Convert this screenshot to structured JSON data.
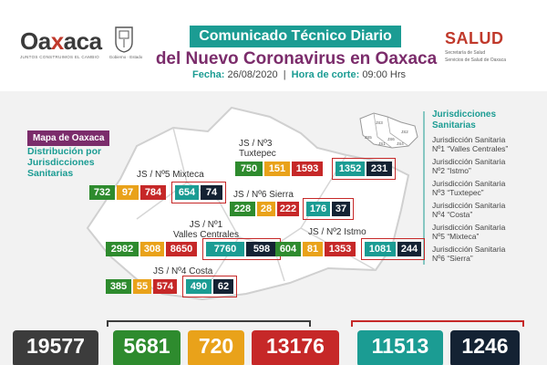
{
  "header": {
    "logo_text_a": "Oa",
    "logo_text_x": "x",
    "logo_text_b": "aca",
    "logo_tagline": "JUNTOS CONSTRUIMOS EL CAMBIO",
    "crest_label": "Gobierno · Estado",
    "title_line1": "Comunicado Técnico Diario",
    "title_line2": "del Nuevo Coronavirus en Oaxaca",
    "fecha_label": "Fecha:",
    "fecha_value": "26/08/2020",
    "hora_label": "Hora de corte:",
    "hora_value": "09:00 Hrs",
    "salud_word": "SALUD",
    "salud_sub1": "Secretaría de Salud",
    "salud_sub2": "Servicios de Salud de Oaxaca"
  },
  "map": {
    "tag": "Mapa de Oaxaca",
    "subtitle": "Distribución por Jurisdicciones Sanitarias",
    "mini_labels": [
      "JS1",
      "JS2",
      "JS3",
      "JS4",
      "JS5",
      "JS6"
    ],
    "jurisdictions": [
      {
        "label1": "JS / Nº3",
        "label2": "Tuxtepec",
        "values": [
          "750",
          "151",
          "1593",
          "1352",
          "231"
        ]
      },
      {
        "label1": "JS / Nº5 Mixteca",
        "label2": "",
        "values": [
          "732",
          "97",
          "784",
          "654",
          "74"
        ]
      },
      {
        "label1": "JS / Nº6 Sierra",
        "label2": "",
        "values": [
          "228",
          "28",
          "222",
          "176",
          "37"
        ]
      },
      {
        "label1": "JS / Nº1",
        "label2": "Valles Centrales",
        "values": [
          "2982",
          "308",
          "8650",
          "7760",
          "598"
        ]
      },
      {
        "label1": "JS / Nº2 Istmo",
        "label2": "",
        "values": [
          "604",
          "81",
          "1353",
          "1081",
          "244"
        ]
      },
      {
        "label1": "JS / Nº4 Costa",
        "label2": "",
        "values": [
          "385",
          "55",
          "574",
          "490",
          "62"
        ]
      }
    ]
  },
  "legend": {
    "title1": "Jurisdicciones",
    "title2": "Sanitarias",
    "items": [
      {
        "line1": "Jurisdicción Sanitaria",
        "line2": "Nº1 “Valles Centrales”"
      },
      {
        "line1": "Jurisdicción Sanitaria",
        "line2": "Nº2 “Istmo”"
      },
      {
        "line1": "Jurisdicción Sanitaria",
        "line2": "Nº3 “Tuxtepec”"
      },
      {
        "line1": "Jurisdicción Sanitaria",
        "line2": "Nº4 “Costa”"
      },
      {
        "line1": "Jurisdicción Sanitaria",
        "line2": "Nº5 “Mixteca”"
      },
      {
        "line1": "Jurisdicción Sanitaria",
        "line2": "Nº6 “Sierra”"
      }
    ]
  },
  "totals": [
    "19577",
    "5681",
    "720",
    "13176",
    "11513",
    "1246"
  ],
  "colors": {
    "teal": "#1b9c93",
    "purple": "#7b2c6b",
    "green": "#2e8b2e",
    "orange": "#e9a21a",
    "red": "#c62828",
    "navy": "#142233",
    "gray": "#3c3c3c"
  }
}
